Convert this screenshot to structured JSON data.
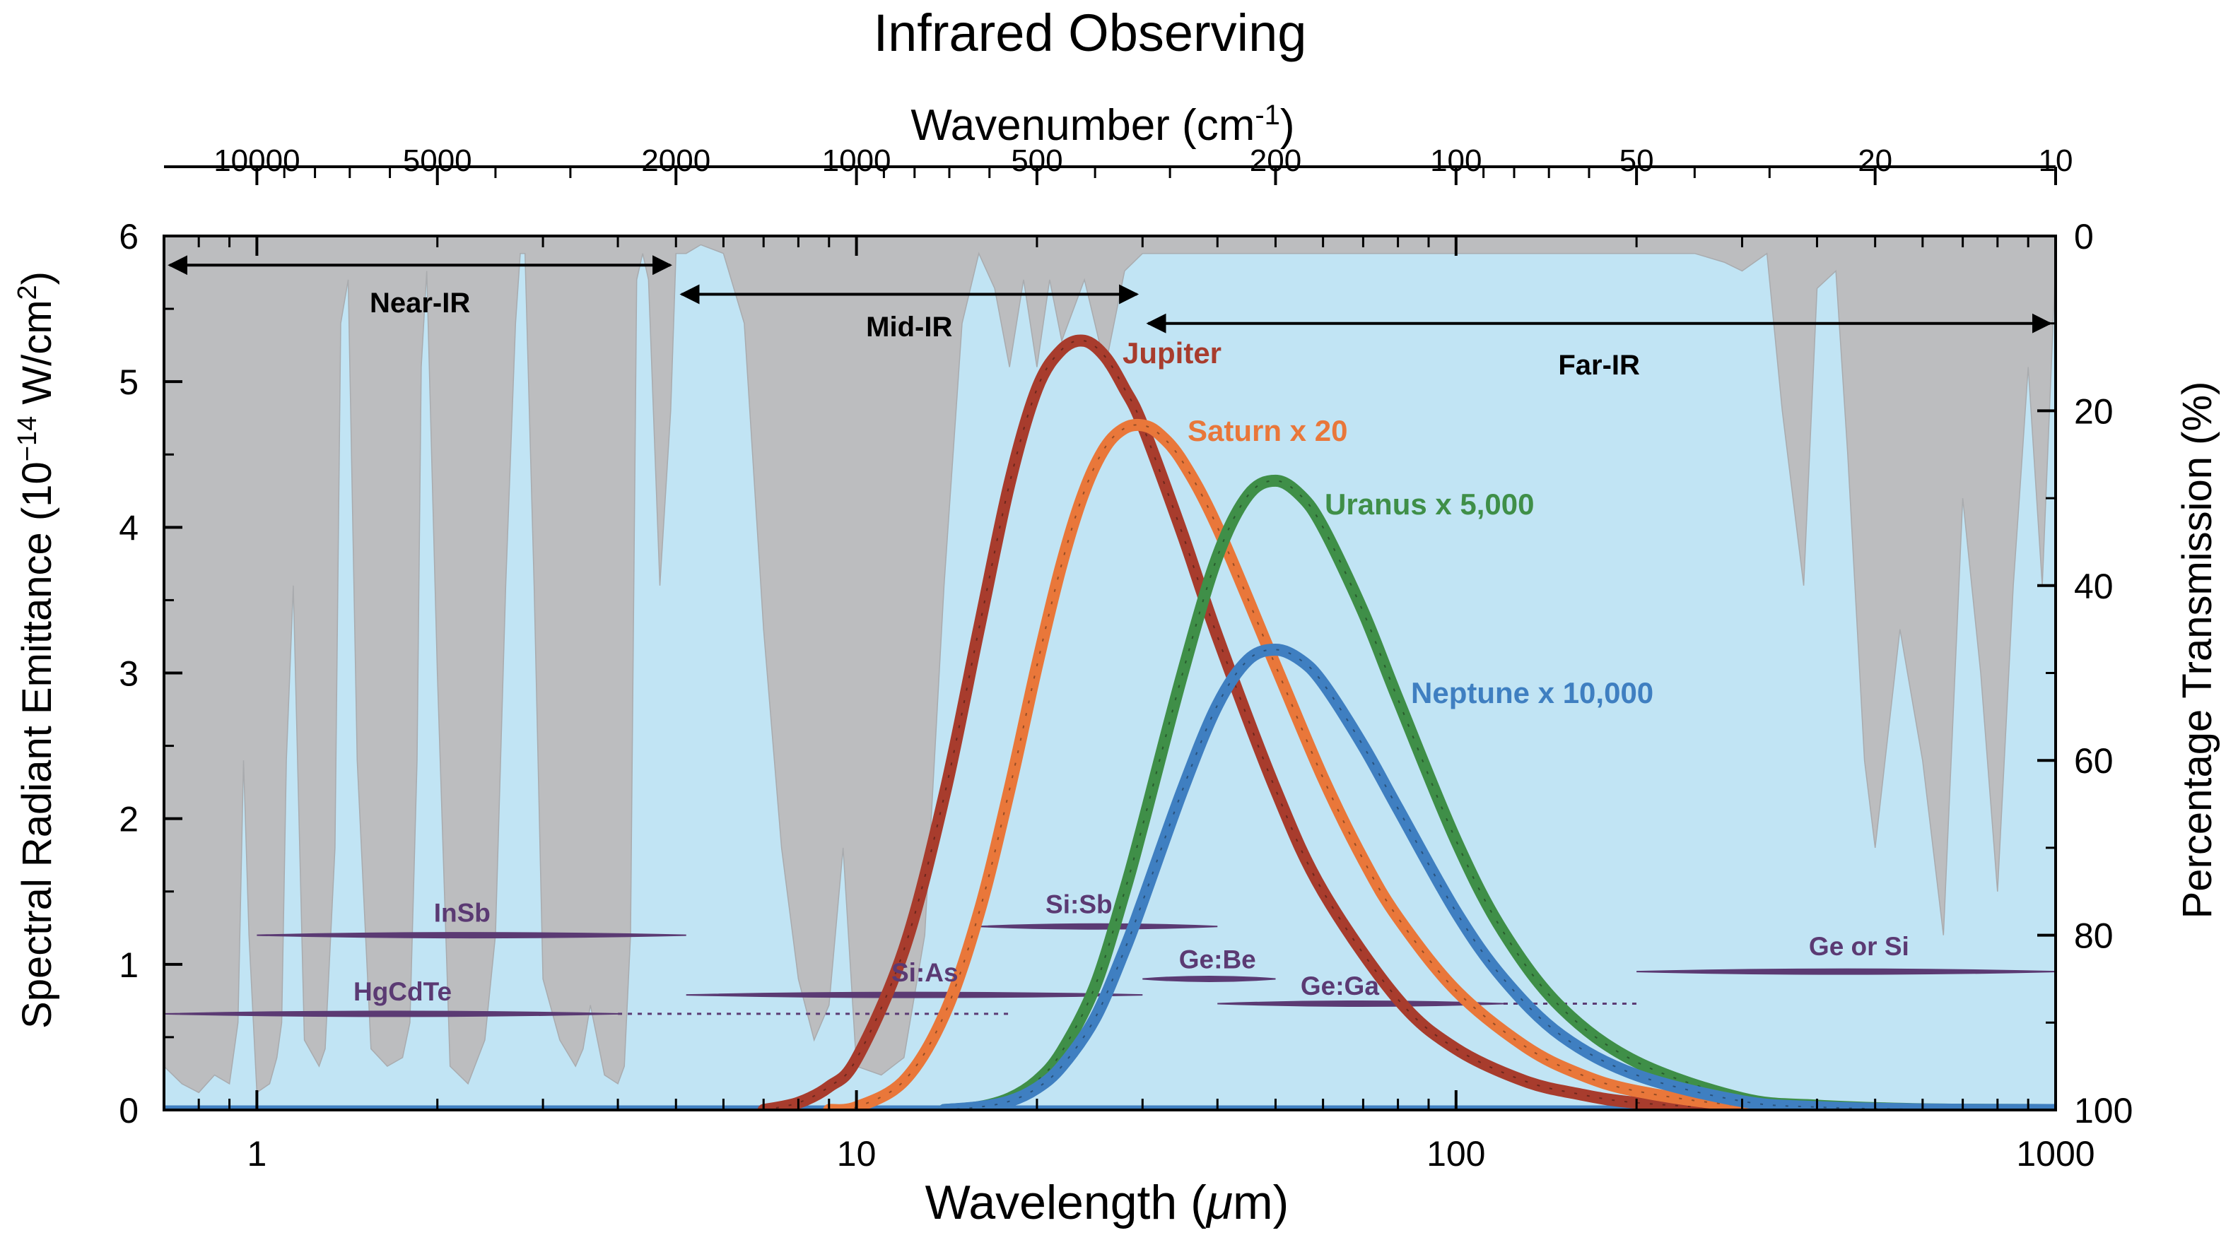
{
  "chart_data": {
    "type": "line",
    "title": "Infrared Observing",
    "xlabel": "Wavelength (μm)",
    "ylabel": "Spectral Radiant Emittance (10⁻¹⁴ W/cm²)",
    "y2label": "Percentage Transmission (%)",
    "x2label": "Wavenumber (cm⁻¹)",
    "xscale": "log",
    "xlim": [
      0.7,
      1000
    ],
    "ylim": [
      0,
      6
    ],
    "y2lim": [
      100,
      0
    ],
    "x_ticks": [
      {
        "value": 1,
        "label": "1"
      },
      {
        "value": 10,
        "label": "10"
      },
      {
        "value": 100,
        "label": "100"
      },
      {
        "value": 1000,
        "label": "1000"
      }
    ],
    "y_ticks": [
      {
        "value": 0,
        "label": "0"
      },
      {
        "value": 1,
        "label": "1"
      },
      {
        "value": 2,
        "label": "2"
      },
      {
        "value": 3,
        "label": "3"
      },
      {
        "value": 4,
        "label": "4"
      },
      {
        "value": 5,
        "label": "5"
      },
      {
        "value": 6,
        "label": "6"
      }
    ],
    "y2_ticks": [
      {
        "value": 0,
        "label": "0"
      },
      {
        "value": 20,
        "label": "20"
      },
      {
        "value": 40,
        "label": "40"
      },
      {
        "value": 60,
        "label": "60"
      },
      {
        "value": 80,
        "label": "80"
      },
      {
        "value": 100,
        "label": "100"
      }
    ],
    "x2_ticks": [
      {
        "value": 10000,
        "label": "10000"
      },
      {
        "value": 5000,
        "label": "5000"
      },
      {
        "value": 2000,
        "label": "2000"
      },
      {
        "value": 1000,
        "label": "1000"
      },
      {
        "value": 500,
        "label": "500"
      },
      {
        "value": 200,
        "label": "200"
      },
      {
        "value": 100,
        "label": "100"
      },
      {
        "value": 50,
        "label": "50"
      },
      {
        "value": 20,
        "label": "20"
      },
      {
        "value": 10,
        "label": "10"
      }
    ],
    "regions": [
      {
        "name": "Near-IR",
        "range": [
          0.7,
          5
        ],
        "arrow_y": 5.8
      },
      {
        "name": "Mid-IR",
        "range": [
          5,
          30
        ],
        "arrow_y": 5.6
      },
      {
        "name": "Far-IR",
        "range": [
          30,
          1000
        ],
        "arrow_y": 5.4
      }
    ],
    "series": [
      {
        "name": "Jupiter",
        "color": "#a83c2d",
        "peak_x": 24,
        "peak_y": 5.28,
        "x": [
          7,
          8,
          9,
          10,
          12,
          14,
          16,
          18,
          20,
          22,
          24,
          26,
          28,
          30,
          35,
          40,
          50,
          60,
          80,
          100,
          130,
          160,
          200,
          300,
          500,
          1000
        ],
        "y": [
          0,
          0.05,
          0.16,
          0.35,
          1.1,
          2.15,
          3.3,
          4.3,
          4.95,
          5.22,
          5.28,
          5.17,
          4.95,
          4.7,
          3.95,
          3.25,
          2.2,
          1.5,
          0.76,
          0.42,
          0.2,
          0.11,
          0.05,
          0.01,
          0,
          0
        ]
      },
      {
        "name": "Saturn x 20",
        "color": "#e9773a",
        "peak_x": 30,
        "peak_y": 4.7,
        "x": [
          9,
          10,
          12,
          14,
          16,
          18,
          20,
          22,
          24,
          26,
          28,
          30,
          32,
          35,
          40,
          50,
          60,
          70,
          80,
          100,
          130,
          160,
          200,
          300,
          500,
          1000
        ],
        "y": [
          0,
          0.02,
          0.2,
          0.65,
          1.35,
          2.2,
          3.05,
          3.75,
          4.25,
          4.55,
          4.68,
          4.7,
          4.64,
          4.45,
          4.0,
          3.05,
          2.28,
          1.72,
          1.32,
          0.82,
          0.44,
          0.25,
          0.13,
          0.03,
          0,
          0
        ]
      },
      {
        "name": "Uranus x 5,000",
        "color": "#3f8f48",
        "peak_x": 50,
        "peak_y": 4.32,
        "x": [
          14,
          16,
          18,
          20,
          22,
          25,
          28,
          30,
          35,
          40,
          45,
          50,
          55,
          60,
          70,
          80,
          100,
          120,
          150,
          200,
          300,
          400,
          600,
          1000
        ],
        "y": [
          0,
          0.02,
          0.08,
          0.2,
          0.4,
          0.85,
          1.5,
          1.95,
          3.0,
          3.8,
          4.22,
          4.32,
          4.22,
          4.0,
          3.42,
          2.82,
          1.85,
          1.22,
          0.7,
          0.33,
          0.08,
          0.03,
          0.005,
          0
        ]
      },
      {
        "name": "Neptune x 10,000",
        "color": "#3f7fc1",
        "peak_x": 50,
        "peak_y": 3.16,
        "x": [
          14,
          16,
          18,
          20,
          22,
          25,
          28,
          30,
          35,
          40,
          45,
          50,
          55,
          60,
          70,
          80,
          100,
          120,
          150,
          200,
          300,
          400,
          600,
          1000
        ],
        "y": [
          0,
          0.02,
          0.06,
          0.15,
          0.3,
          0.63,
          1.1,
          1.43,
          2.2,
          2.78,
          3.09,
          3.16,
          3.09,
          2.93,
          2.5,
          2.07,
          1.36,
          0.9,
          0.51,
          0.24,
          0.06,
          0.02,
          0.004,
          0
        ]
      }
    ],
    "detectors": [
      {
        "name": "InSb",
        "range": [
          1,
          5.2
        ],
        "y": 1.2,
        "label_x": 2.2,
        "label_y": 1.35,
        "dotted_to": null
      },
      {
        "name": "HgCdTe",
        "range": [
          0.7,
          4.0
        ],
        "y": 0.66,
        "label_x": 1.75,
        "label_y": 0.81,
        "dotted_to": 18
      },
      {
        "name": "Si:As",
        "range": [
          5.2,
          30
        ],
        "y": 0.79,
        "label_x": 13,
        "label_y": 0.94,
        "dotted_to": null
      },
      {
        "name": "Si:Sb",
        "range": [
          16,
          40
        ],
        "y": 1.26,
        "label_x": 23.5,
        "label_y": 1.41,
        "dotted_to": null
      },
      {
        "name": "Ge:Be",
        "range": [
          30,
          50
        ],
        "y": 0.9,
        "label_x": 40,
        "label_y": 1.03,
        "dotted_to": null
      },
      {
        "name": "Ge:Ga",
        "range": [
          40,
          120
        ],
        "y": 0.73,
        "label_x": 64,
        "label_y": 0.85,
        "dotted_to": 200
      },
      {
        "name": "Ge or Si",
        "range": [
          200,
          1000
        ],
        "y": 0.95,
        "label_x": 470,
        "label_y": 1.12,
        "dotted_to": null
      }
    ],
    "atmospheric_transmission": {
      "description_color": "#c1e4f4",
      "opaque_color": "#bcbdbf",
      "x": [
        0.7,
        0.75,
        0.8,
        0.85,
        0.9,
        0.93,
        0.95,
        0.97,
        1.0,
        1.05,
        1.08,
        1.1,
        1.12,
        1.15,
        1.2,
        1.27,
        1.3,
        1.35,
        1.38,
        1.42,
        1.47,
        1.55,
        1.65,
        1.75,
        1.8,
        1.85,
        1.88,
        1.92,
        2.0,
        2.1,
        2.25,
        2.4,
        2.5,
        2.6,
        2.7,
        2.75,
        2.8,
        2.9,
        3.0,
        3.2,
        3.4,
        3.5,
        3.6,
        3.8,
        4.0,
        4.1,
        4.2,
        4.3,
        4.4,
        4.5,
        4.7,
        4.9,
        5.0,
        5.2,
        5.5,
        6.0,
        6.5,
        7.0,
        7.5,
        8.0,
        8.5,
        9.0,
        9.5,
        10.0,
        11.0,
        12.0,
        13.0,
        14.0,
        15.0,
        16.0,
        17.0,
        18.0,
        19.0,
        20.0,
        21.0,
        22.0,
        24.0,
        26.0,
        28.0,
        30.0,
        40.0,
        100.0,
        200.0,
        250.0,
        280.0,
        300.0,
        330.0,
        350.0,
        380.0,
        400.0,
        430.0,
        450.0,
        480.0,
        500.0,
        550.0,
        600.0,
        650.0,
        700.0,
        750.0,
        800.0,
        850.0,
        870.0,
        900.0,
        950.0,
        1000.0
      ],
      "transmission_pct": [
        95,
        97,
        98,
        96,
        97,
        90,
        60,
        80,
        98,
        97,
        94,
        90,
        60,
        40,
        92,
        95,
        93,
        70,
        10,
        5,
        60,
        93,
        95,
        94,
        90,
        60,
        15,
        4,
        50,
        95,
        97,
        92,
        80,
        40,
        10,
        2,
        2,
        40,
        85,
        92,
        95,
        93,
        88,
        96,
        97,
        95,
        80,
        5,
        2,
        5,
        40,
        20,
        2,
        2,
        1,
        2,
        10,
        45,
        70,
        85,
        92,
        88,
        70,
        95,
        96,
        94,
        80,
        40,
        10,
        2,
        6,
        15,
        5,
        15,
        5,
        12,
        5,
        15,
        4,
        2,
        2,
        2,
        2,
        2,
        3,
        4,
        2,
        20,
        40,
        6,
        4,
        25,
        60,
        70,
        45,
        60,
        80,
        30,
        50,
        75,
        40,
        30,
        15,
        40,
        3
      ]
    }
  }
}
